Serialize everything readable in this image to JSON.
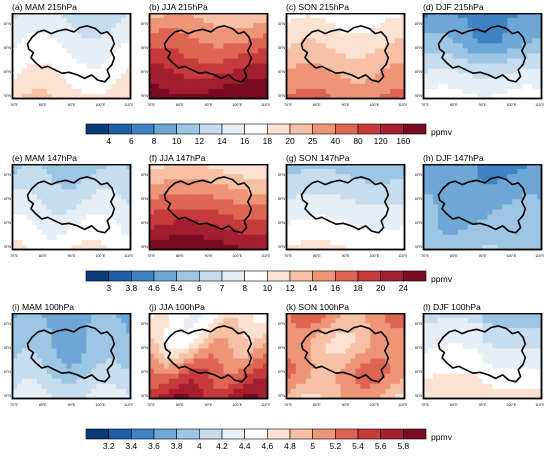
{
  "unit": "ppmv",
  "axes": {
    "lon_ticks": [
      "70°E",
      "80°E",
      "90°E",
      "100°E",
      "110°E"
    ],
    "lat_ticks": [
      "25°N",
      "30°N",
      "35°N",
      "40°N"
    ]
  },
  "rows": [
    {
      "level": "215hPa",
      "colorbar": {
        "ticks": [
          "4",
          "6",
          "8",
          "10",
          "12",
          "14",
          "16",
          "18",
          "20",
          "25",
          "40",
          "80",
          "120",
          "160"
        ],
        "colors": [
          "#0a3a78",
          "#1e5fa8",
          "#3f83c2",
          "#6ea7d6",
          "#9dc6e4",
          "#c5ddef",
          "#e6eef6",
          "#ffffff",
          "#fbe2d2",
          "#f6c1a4",
          "#ee9577",
          "#de6553",
          "#c73a3c",
          "#a31e2e",
          "#7a0b22"
        ]
      },
      "panels": [
        {
          "label": "(a) MAM 215hPa",
          "pattern": "mam215"
        },
        {
          "label": "(b) JJA 215hPa",
          "pattern": "jja215"
        },
        {
          "label": "(c) SON 215hPa",
          "pattern": "son215"
        },
        {
          "label": "(d) DJF 215hPa",
          "pattern": "djf215"
        }
      ]
    },
    {
      "level": "147hPa",
      "colorbar": {
        "ticks": [
          "3",
          "3.8",
          "4.6",
          "5.4",
          "6",
          "7",
          "8",
          "10",
          "12",
          "14",
          "16",
          "18",
          "20",
          "24"
        ],
        "colors": [
          "#0a3a78",
          "#1e5fa8",
          "#3f83c2",
          "#6ea7d6",
          "#9dc6e4",
          "#c5ddef",
          "#e6eef6",
          "#ffffff",
          "#fbe2d2",
          "#f6c1a4",
          "#ee9577",
          "#de6553",
          "#c73a3c",
          "#a31e2e",
          "#7a0b22"
        ]
      },
      "panels": [
        {
          "label": "(e) MAM 147hPa",
          "pattern": "mam147"
        },
        {
          "label": "(f) JJA 147hPa",
          "pattern": "jja147"
        },
        {
          "label": "(g) SON 147hPa",
          "pattern": "son147"
        },
        {
          "label": "(h) DJF 147hPa",
          "pattern": "djf147"
        }
      ]
    },
    {
      "level": "100hPa",
      "colorbar": {
        "ticks": [
          "3.2",
          "3.4",
          "3.6",
          "3.8",
          "4",
          "4.2",
          "4.4",
          "4.6",
          "4.8",
          "5",
          "5.2",
          "5.4",
          "5.6",
          "5.8"
        ],
        "colors": [
          "#0a3a78",
          "#1e5fa8",
          "#3f83c2",
          "#6ea7d6",
          "#9dc6e4",
          "#c5ddef",
          "#e6eef6",
          "#ffffff",
          "#fbe2d2",
          "#f6c1a4",
          "#ee9577",
          "#de6553",
          "#c73a3c",
          "#a31e2e",
          "#7a0b22"
        ]
      },
      "panels": [
        {
          "label": "(i) MAM 100hPa",
          "pattern": "mam100"
        },
        {
          "label": "(j) JJA 100hPa",
          "pattern": "jja100"
        },
        {
          "label": "(k) SON 100hPa",
          "pattern": "son100"
        },
        {
          "label": "(l) DJF 100hPa",
          "pattern": "djf100"
        }
      ]
    }
  ],
  "chart_data": {
    "type": "heatmap",
    "domain": {
      "lon_range": [
        70,
        110
      ],
      "lat_range": [
        25,
        45
      ]
    },
    "seasons": [
      "MAM",
      "JJA",
      "SON",
      "DJF"
    ],
    "levels": [
      "215hPa",
      "147hPa",
      "100hPa"
    ],
    "contour_levels": {
      "215hPa": [
        4,
        6,
        8,
        10,
        12,
        14,
        16,
        18,
        20,
        25,
        40,
        80,
        120,
        160
      ],
      "147hPa": [
        3,
        3.8,
        4.6,
        5.4,
        6,
        7,
        8,
        10,
        12,
        14,
        16,
        18,
        20,
        24
      ],
      "100hPa": [
        3.2,
        3.4,
        3.6,
        3.8,
        4,
        4.2,
        4.4,
        4.6,
        4.8,
        5,
        5.2,
        5.4,
        5.6,
        5.8
      ]
    },
    "unit": "ppmv"
  }
}
